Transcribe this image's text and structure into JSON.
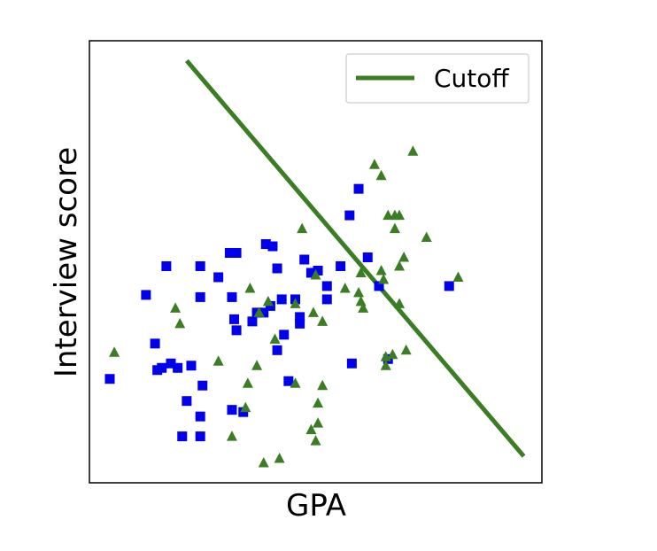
{
  "chart_data": {
    "type": "scatter",
    "title": "",
    "xlabel": "GPA",
    "ylabel": "Interview score",
    "xlim": [
      0,
      100
    ],
    "ylim": [
      0,
      100
    ],
    "ticks_visible": false,
    "grid": false,
    "legend_position": "top-right",
    "legend": [
      "Cutoff"
    ],
    "colors": {
      "squares": "#0000ee",
      "triangles": "#3a7d22",
      "cutoff": "#3a7d22",
      "frame": "#000000"
    },
    "series": [
      {
        "marker": "square",
        "points": [
          [
            4.5,
            23.5
          ],
          [
            12.5,
            42.5
          ],
          [
            14.5,
            31.5
          ],
          [
            15,
            25.5
          ],
          [
            16,
            26
          ],
          [
            17,
            49
          ],
          [
            18,
            27
          ],
          [
            19.5,
            26
          ],
          [
            20.5,
            10.5
          ],
          [
            21.5,
            18.5
          ],
          [
            22.5,
            26.5
          ],
          [
            24.5,
            49
          ],
          [
            24.5,
            10.5
          ],
          [
            24.5,
            15
          ],
          [
            24.5,
            42
          ],
          [
            25,
            22
          ],
          [
            28.5,
            46.5
          ],
          [
            31,
            52
          ],
          [
            31.5,
            16.5
          ],
          [
            31.5,
            42
          ],
          [
            32,
            37
          ],
          [
            32.5,
            34.5
          ],
          [
            32.5,
            52
          ],
          [
            34,
            16
          ],
          [
            36,
            36.5
          ],
          [
            37,
            38.5
          ],
          [
            38.5,
            38.5
          ],
          [
            39,
            54
          ],
          [
            40,
            40
          ],
          [
            40.5,
            53.5
          ],
          [
            41.5,
            48.5
          ],
          [
            41.5,
            30
          ],
          [
            42.5,
            41.5
          ],
          [
            43,
            33.5
          ],
          [
            44,
            23
          ],
          [
            45.5,
            41.5
          ],
          [
            46.5,
            36
          ],
          [
            46.5,
            37.5
          ],
          [
            47.5,
            50.5
          ],
          [
            49,
            47.5
          ],
          [
            49.5,
            47.5
          ],
          [
            50.5,
            48
          ],
          [
            52.5,
            41.5
          ],
          [
            52.5,
            44.5
          ],
          [
            55.5,
            49
          ],
          [
            57.5,
            60.5
          ],
          [
            58,
            27
          ],
          [
            59.5,
            66.5
          ],
          [
            61.5,
            51
          ],
          [
            64,
            44.5
          ],
          [
            66,
            28
          ],
          [
            79.5,
            44.5
          ]
        ]
      },
      {
        "marker": "triangle",
        "points": [
          [
            5.5,
            29.5
          ],
          [
            19,
            39.5
          ],
          [
            20,
            36
          ],
          [
            28.5,
            27.5
          ],
          [
            31.5,
            10.5
          ],
          [
            34.5,
            17
          ],
          [
            35,
            22.5
          ],
          [
            35.5,
            44
          ],
          [
            37,
            26.5
          ],
          [
            37.5,
            38.5
          ],
          [
            38.5,
            4.5
          ],
          [
            39.5,
            41
          ],
          [
            41,
            32.5
          ],
          [
            42,
            5.5
          ],
          [
            45.5,
            40.5
          ],
          [
            45.5,
            22.5
          ],
          [
            47,
            57.5
          ],
          [
            49,
            12
          ],
          [
            49.5,
            38.5
          ],
          [
            50,
            9.5
          ],
          [
            50,
            47
          ],
          [
            50.5,
            13.5
          ],
          [
            50.5,
            18
          ],
          [
            51.5,
            36.5
          ],
          [
            51.5,
            22
          ],
          [
            56.5,
            44
          ],
          [
            59.5,
            43
          ],
          [
            60,
            41
          ],
          [
            60,
            47.5
          ],
          [
            60.5,
            39.5
          ],
          [
            63,
            72
          ],
          [
            64.5,
            69.5
          ],
          [
            65,
            46
          ],
          [
            64.5,
            48
          ],
          [
            65.5,
            26.5
          ],
          [
            65.5,
            28.5
          ],
          [
            66,
            60.5
          ],
          [
            67,
            29
          ],
          [
            67.5,
            57.5
          ],
          [
            67.5,
            60.5
          ],
          [
            68.5,
            60.5
          ],
          [
            68.5,
            49
          ],
          [
            68.5,
            40.5
          ],
          [
            69.5,
            51
          ],
          [
            70,
            30
          ],
          [
            71.5,
            75
          ],
          [
            74.5,
            55.5
          ],
          [
            81.5,
            46.5
          ]
        ]
      },
      {
        "name": "Cutoff",
        "marker": "line",
        "points": [
          [
            21.5,
            95.5
          ],
          [
            96,
            6
          ]
        ]
      }
    ]
  }
}
